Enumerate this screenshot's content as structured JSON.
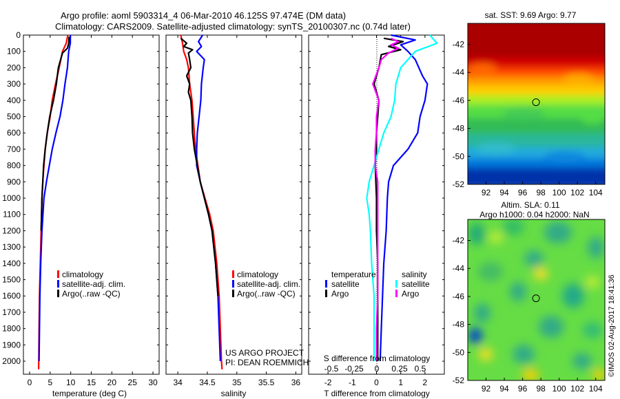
{
  "header": {
    "line1": "Argo profile: aoml 5903314_4 06-Mar-2010 46.125S 97.474E (DM data)",
    "line2": "Climatology: CARS2009. Satellite-adjusted climatology: synTS_20100307.nc (0.74d later)"
  },
  "colors": {
    "red": "#ff0000",
    "blue": "#0000ff",
    "black": "#000000",
    "cyan": "#00ffff",
    "magenta": "#ff00ff"
  },
  "chart_data": [
    {
      "type": "line",
      "id": "temperature",
      "xlabel": "temperature (deg C)",
      "ylabel": "",
      "xlim": [
        -1.5,
        31.5
      ],
      "ylim": [
        2080,
        0
      ],
      "xticks": [
        0,
        5,
        10,
        15,
        20,
        25,
        30
      ],
      "yticks": [
        0,
        100,
        200,
        300,
        400,
        500,
        600,
        700,
        800,
        900,
        1000,
        1100,
        1200,
        1300,
        1400,
        1500,
        1600,
        1700,
        1800,
        1900,
        2000
      ],
      "legend": [
        "climatology",
        "satellite-adj. clim.",
        "Argo(..raw -QC)"
      ],
      "series": [
        {
          "name": "climatology",
          "color": "red",
          "points": [
            [
              9.3,
              0
            ],
            [
              8.9,
              50
            ],
            [
              8.0,
              100
            ],
            [
              7.2,
              200
            ],
            [
              6.3,
              300
            ],
            [
              5.5,
              400
            ],
            [
              5.0,
              500
            ],
            [
              4.3,
              600
            ],
            [
              3.8,
              700
            ],
            [
              3.5,
              800
            ],
            [
              3.2,
              900
            ],
            [
              3.0,
              1000
            ],
            [
              2.8,
              1200
            ],
            [
              2.6,
              1400
            ],
            [
              2.4,
              1600
            ],
            [
              2.3,
              1800
            ],
            [
              2.2,
              2050
            ]
          ]
        },
        {
          "name": "satellite-adj. clim.",
          "color": "blue",
          "points": [
            [
              9.9,
              0
            ],
            [
              9.9,
              50
            ],
            [
              9.5,
              100
            ],
            [
              9.2,
              200
            ],
            [
              8.6,
              300
            ],
            [
              8.1,
              400
            ],
            [
              7.4,
              500
            ],
            [
              6.4,
              600
            ],
            [
              5.5,
              700
            ],
            [
              4.8,
              800
            ],
            [
              4.1,
              900
            ],
            [
              3.5,
              1000
            ],
            [
              3.0,
              1200
            ],
            [
              2.7,
              1400
            ],
            [
              2.5,
              1600
            ],
            [
              2.4,
              1800
            ],
            [
              2.3,
              2000
            ]
          ]
        },
        {
          "name": "Argo(..raw -QC)",
          "color": "black",
          "points": [
            [
              9.6,
              10
            ],
            [
              9.5,
              50
            ],
            [
              9.2,
              80
            ],
            [
              8.0,
              110
            ],
            [
              7.0,
              200
            ],
            [
              6.5,
              300
            ],
            [
              5.8,
              400
            ],
            [
              4.9,
              500
            ],
            [
              4.3,
              600
            ],
            [
              3.8,
              700
            ],
            [
              3.4,
              800
            ],
            [
              3.2,
              900
            ],
            [
              3.0,
              1000
            ],
            [
              2.8,
              1200
            ]
          ]
        }
      ]
    },
    {
      "type": "line",
      "id": "salinity",
      "xlabel": "salinity",
      "ylabel": "",
      "xlim": [
        33.8,
        36.1
      ],
      "ylim": [
        2080,
        0
      ],
      "xticks": [
        34,
        34.5,
        35,
        35.5,
        36
      ],
      "legend": [
        "climatology",
        "satellite-adj. clim.",
        "Argo(..raw -QC)"
      ],
      "annotation": [
        "US ARGO PROJECT",
        "PI: DEAN ROEMMICH"
      ],
      "series": [
        {
          "name": "climatology",
          "color": "red",
          "points": [
            [
              34.05,
              0
            ],
            [
              34.08,
              50
            ],
            [
              34.1,
              100
            ],
            [
              34.15,
              150
            ],
            [
              34.18,
              200
            ],
            [
              34.2,
              300
            ],
            [
              34.24,
              400
            ],
            [
              34.26,
              500
            ],
            [
              34.28,
              600
            ],
            [
              34.3,
              700
            ],
            [
              34.34,
              800
            ],
            [
              34.38,
              900
            ],
            [
              34.46,
              1000
            ],
            [
              34.54,
              1100
            ],
            [
              34.6,
              1200
            ],
            [
              34.66,
              1400
            ],
            [
              34.7,
              1600
            ],
            [
              34.72,
              1800
            ],
            [
              34.74,
              2000
            ],
            [
              34.75,
              2050
            ]
          ]
        },
        {
          "name": "satellite-adj. clim.",
          "color": "blue",
          "points": [
            [
              34.42,
              0
            ],
            [
              34.35,
              40
            ],
            [
              34.4,
              70
            ],
            [
              34.32,
              100
            ],
            [
              34.45,
              150
            ],
            [
              34.43,
              200
            ],
            [
              34.4,
              300
            ],
            [
              34.39,
              400
            ],
            [
              34.36,
              500
            ],
            [
              34.33,
              600
            ],
            [
              34.32,
              700
            ],
            [
              34.32,
              800
            ],
            [
              34.38,
              900
            ],
            [
              34.45,
              1000
            ],
            [
              34.52,
              1100
            ],
            [
              34.58,
              1200
            ],
            [
              34.64,
              1400
            ],
            [
              34.68,
              1600
            ],
            [
              34.7,
              1800
            ],
            [
              34.72,
              2000
            ]
          ]
        },
        {
          "name": "Argo(..raw -QC)",
          "color": "black",
          "points": [
            [
              34.05,
              20
            ],
            [
              34.15,
              50
            ],
            [
              34.1,
              70
            ],
            [
              34.25,
              90
            ],
            [
              34.18,
              110
            ],
            [
              34.2,
              150
            ],
            [
              34.22,
              200
            ],
            [
              34.15,
              250
            ],
            [
              34.2,
              300
            ],
            [
              34.18,
              350
            ],
            [
              34.22,
              400
            ],
            [
              34.24,
              500
            ],
            [
              34.25,
              600
            ],
            [
              34.28,
              700
            ],
            [
              34.33,
              800
            ],
            [
              34.38,
              900
            ],
            [
              34.45,
              1000
            ],
            [
              34.52,
              1100
            ],
            [
              34.58,
              1200
            ],
            [
              34.64,
              1400
            ],
            [
              34.68,
              1600
            ]
          ]
        }
      ]
    },
    {
      "type": "line",
      "id": "difference",
      "xlabel": "T difference from climatology",
      "xlabel_top": "S difference from climatology",
      "xlim": [
        -2.8,
        2.8
      ],
      "ylim": [
        2080,
        0
      ],
      "xticks": [
        -2,
        -1,
        0,
        1,
        2
      ],
      "xticks_s": [
        -0.5,
        -0.25,
        0,
        0.25,
        0.5
      ],
      "legend_headers": [
        "temperature",
        "salinity"
      ],
      "legend": [
        "satellite",
        "Argo",
        "satellite",
        "Argo"
      ],
      "series": [
        {
          "name": "satellite",
          "color": "blue",
          "points": [
            [
              0.6,
              0
            ],
            [
              1.6,
              30
            ],
            [
              1.0,
              60
            ],
            [
              1.3,
              100
            ],
            [
              1.6,
              150
            ],
            [
              1.9,
              250
            ],
            [
              2.1,
              300
            ],
            [
              2.0,
              400
            ],
            [
              1.8,
              500
            ],
            [
              1.7,
              600
            ],
            [
              1.3,
              700
            ],
            [
              0.7,
              800
            ],
            [
              0.5,
              900
            ],
            [
              0.45,
              1000
            ],
            [
              0.4,
              1200
            ],
            [
              0.3,
              1400
            ],
            [
              0.25,
              1600
            ],
            [
              0.2,
              1800
            ],
            [
              0.15,
              2000
            ]
          ]
        },
        {
          "name": "Argo",
          "color": "black",
          "points": [
            [
              0.3,
              20
            ],
            [
              1.1,
              40
            ],
            [
              0.5,
              70
            ],
            [
              1.0,
              90
            ],
            [
              0.2,
              120
            ],
            [
              0.1,
              200
            ],
            [
              -0.1,
              300
            ],
            [
              0.1,
              400
            ],
            [
              0.05,
              500
            ],
            [
              0.0,
              600
            ],
            [
              0.0,
              700
            ],
            [
              -0.05,
              800
            ],
            [
              0.0,
              1000
            ],
            [
              0.0,
              1200
            ],
            [
              0.05,
              1400
            ],
            [
              0.05,
              1600
            ],
            [
              0.05,
              1800
            ],
            [
              0.05,
              2000
            ]
          ]
        },
        {
          "name": "satellite",
          "color": "cyan",
          "points": [
            [
              2.2,
              0
            ],
            [
              2.5,
              50
            ],
            [
              1.6,
              100
            ],
            [
              1.0,
              200
            ],
            [
              0.8,
              300
            ],
            [
              0.75,
              400
            ],
            [
              0.6,
              500
            ],
            [
              0.3,
              600
            ],
            [
              0.1,
              700
            ],
            [
              -0.1,
              800
            ],
            [
              -0.3,
              900
            ],
            [
              -0.4,
              1000
            ],
            [
              -0.3,
              1100
            ],
            [
              -0.25,
              1200
            ],
            [
              -0.2,
              1400
            ],
            [
              -0.1,
              1600
            ],
            [
              -0.1,
              1800
            ],
            [
              -0.1,
              2000
            ]
          ]
        },
        {
          "name": "Argo",
          "color": "magenta",
          "points": [
            [
              0.6,
              20
            ],
            [
              0.9,
              40
            ],
            [
              0.6,
              60
            ],
            [
              0.9,
              80
            ],
            [
              0.5,
              110
            ],
            [
              0.2,
              150
            ],
            [
              0.1,
              200
            ],
            [
              -0.15,
              300
            ],
            [
              0.1,
              400
            ],
            [
              0.0,
              500
            ],
            [
              0.0,
              600
            ],
            [
              -0.05,
              700
            ],
            [
              -0.05,
              800
            ],
            [
              0.05,
              900
            ],
            [
              0.05,
              1000
            ],
            [
              0.05,
              1200
            ],
            [
              0.05,
              1400
            ],
            [
              0.05,
              1600
            ],
            [
              0.0,
              1800
            ],
            [
              0.0,
              2000
            ]
          ]
        }
      ]
    },
    {
      "type": "heatmap",
      "id": "sst-map",
      "title": "sat. SST: 9.69  Argo: 9.77",
      "xlim": [
        90,
        105
      ],
      "ylim": [
        -52,
        -40.5
      ],
      "xticks": [
        92,
        94,
        96,
        98,
        100,
        102,
        104
      ],
      "yticks": [
        -42,
        -44,
        -46,
        -48,
        -50,
        -52
      ],
      "marker": [
        97.47,
        -46.13
      ]
    },
    {
      "type": "heatmap",
      "id": "sla-map",
      "title": "Altim. SLA: 0.11",
      "subtitle": "Argo h1000: 0.04  h2000: NaN",
      "xlim": [
        90,
        105
      ],
      "ylim": [
        -52,
        -40.5
      ],
      "xticks": [
        92,
        94,
        96,
        98,
        100,
        102,
        104
      ],
      "yticks": [
        -42,
        -44,
        -46,
        -48,
        -50,
        -52
      ],
      "marker": [
        97.47,
        -46.13
      ]
    }
  ],
  "side_stamp": "©IMOS 02-Aug-2017 18:41:36"
}
